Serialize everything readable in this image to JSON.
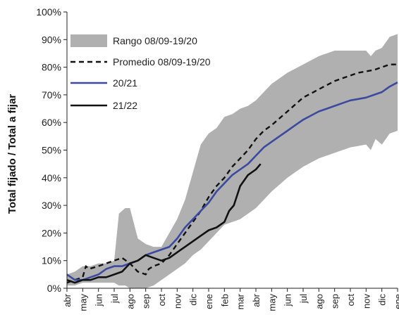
{
  "chart_data": {
    "type": "line",
    "ylabel": "Total fijado / Total a fijar",
    "ylim": [
      0,
      100
    ],
    "y_ticks": [
      "0%",
      "10%",
      "20%",
      "30%",
      "40%",
      "50%",
      "60%",
      "70%",
      "80%",
      "90%",
      "100%"
    ],
    "x_tick_labels": [
      "abr",
      "may",
      "jun",
      "jul",
      "ago",
      "sep",
      "oct",
      "nov",
      "dic",
      "ene",
      "feb",
      "mar",
      "abr",
      "may",
      "jun",
      "jul",
      "ago",
      "sep",
      "oct",
      "nov",
      "dic",
      "ene"
    ],
    "grid": false,
    "legend_position": "top-left",
    "band": {
      "name": "Rango 08/09-19/20",
      "color": "#b0b0b0",
      "x": [
        0,
        0.5,
        1,
        1.5,
        2,
        2.5,
        3,
        3.3,
        3.7,
        4,
        4.5,
        5,
        5.5,
        6,
        6.5,
        7,
        7.5,
        8,
        8.5,
        9,
        9.5,
        10,
        10.5,
        11,
        11.5,
        12,
        13,
        14,
        15,
        16,
        17,
        18,
        19,
        19.3,
        19.6,
        20,
        20.5,
        21
      ],
      "lower": [
        1,
        1,
        2,
        2,
        2,
        2,
        2,
        1,
        1,
        0,
        0,
        0,
        1,
        3,
        5,
        7,
        9,
        12,
        14,
        17,
        20,
        23,
        24,
        25,
        27,
        29,
        35,
        40,
        44,
        47,
        49,
        51,
        52,
        50,
        54,
        52,
        56,
        57
      ],
      "upper": [
        5,
        6,
        8,
        8,
        9,
        9,
        10,
        27,
        29,
        29,
        18,
        16,
        15,
        15,
        20,
        25,
        32,
        42,
        52,
        56,
        58,
        62,
        63,
        65,
        66,
        68,
        74,
        78,
        81,
        84,
        86,
        86,
        86,
        84,
        86,
        87,
        91,
        92
      ]
    },
    "series": [
      {
        "name": "Promedio 08/09-19/20",
        "color": "#111111",
        "dash": "dashed",
        "x": [
          0,
          0.5,
          1,
          1.2,
          1.4,
          2,
          2.5,
          3,
          3.5,
          4,
          4.5,
          5,
          5.2,
          5.5,
          6,
          6.5,
          7,
          7.5,
          8,
          8.5,
          9,
          9.5,
          10,
          10.5,
          11,
          11.5,
          12,
          12.5,
          13,
          14,
          15,
          15.5,
          16,
          16.5,
          17,
          17.5,
          18,
          18.5,
          19,
          19.5,
          20,
          20.5,
          21
        ],
        "values": [
          2,
          3,
          4,
          8,
          7,
          8,
          9,
          10,
          11,
          9,
          6,
          5,
          7,
          8,
          9,
          12,
          16,
          20,
          24,
          28,
          33,
          37,
          40,
          44,
          47,
          50,
          54,
          57,
          59,
          64,
          69,
          70.5,
          72,
          73.5,
          75,
          76,
          77,
          78,
          78.5,
          79,
          80,
          81,
          81
        ]
      },
      {
        "name": "20/21",
        "color": "#3b4aa0",
        "dash": "solid",
        "x": [
          0,
          0.5,
          1,
          1.5,
          2,
          2.5,
          3,
          3.5,
          4,
          4.5,
          5,
          5.5,
          6,
          6.5,
          7,
          7.5,
          8,
          8.5,
          9,
          9.5,
          10,
          10.5,
          11,
          11.5,
          12,
          12.5,
          13,
          13.5,
          14,
          14.5,
          15,
          15.5,
          16,
          16.5,
          17,
          17.5,
          18,
          18.5,
          19,
          19.5,
          20,
          20.5,
          21
        ],
        "values": [
          5,
          3,
          3,
          4,
          5,
          7,
          8,
          8,
          9,
          10,
          12,
          13,
          14,
          15,
          18,
          22,
          25,
          28,
          31,
          35,
          38,
          41,
          43,
          45,
          48,
          51,
          53,
          55,
          57,
          59,
          61,
          62.5,
          64,
          65,
          66,
          67,
          68,
          68.5,
          69,
          70,
          71,
          73,
          74.5
        ]
      },
      {
        "name": "21/22",
        "color": "#111111",
        "dash": "solid",
        "x": [
          0,
          0.5,
          1,
          1.5,
          2,
          2.5,
          3,
          3.5,
          4,
          4.5,
          5,
          5.5,
          6,
          6.5,
          7,
          7.5,
          8,
          8.5,
          9,
          9.5,
          10,
          10.3,
          10.6,
          11,
          11.5,
          12,
          12.3
        ],
        "values": [
          3,
          2,
          3,
          3,
          4,
          4,
          5,
          6,
          9,
          10,
          12,
          11,
          10,
          11,
          13,
          15,
          17,
          19,
          21,
          22,
          24,
          28,
          30,
          37,
          41,
          43,
          45
        ]
      }
    ]
  }
}
